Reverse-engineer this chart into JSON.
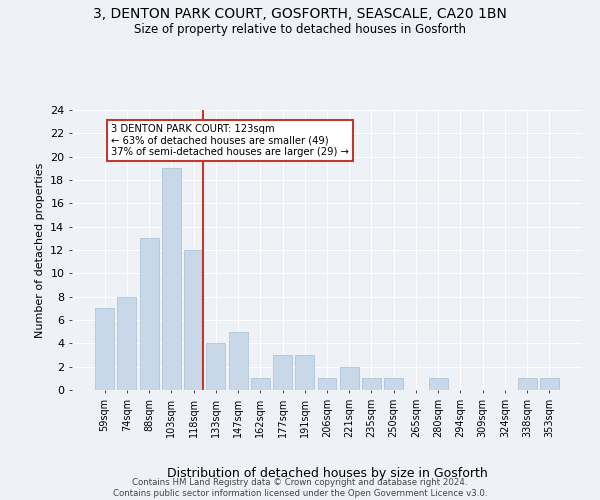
{
  "title1": "3, DENTON PARK COURT, GOSFORTH, SEASCALE, CA20 1BN",
  "title2": "Size of property relative to detached houses in Gosforth",
  "xlabel": "Distribution of detached houses by size in Gosforth",
  "ylabel": "Number of detached properties",
  "categories": [
    "59sqm",
    "74sqm",
    "88sqm",
    "103sqm",
    "118sqm",
    "133sqm",
    "147sqm",
    "162sqm",
    "177sqm",
    "191sqm",
    "206sqm",
    "221sqm",
    "235sqm",
    "250sqm",
    "265sqm",
    "280sqm",
    "294sqm",
    "309sqm",
    "324sqm",
    "338sqm",
    "353sqm"
  ],
  "values": [
    7,
    8,
    13,
    19,
    12,
    4,
    5,
    1,
    3,
    3,
    1,
    2,
    1,
    1,
    0,
    1,
    0,
    0,
    0,
    1,
    1
  ],
  "bar_color": "#c8d8e8",
  "bar_edge_color": "#a8bfd0",
  "vline_color": "#c0392b",
  "vline_pos": 4.42,
  "annotation_text": "3 DENTON PARK COURT: 123sqm\n← 63% of detached houses are smaller (49)\n37% of semi-detached houses are larger (29) →",
  "annotation_box_color": "white",
  "annotation_box_edge": "#c0392b",
  "ylim": [
    0,
    24
  ],
  "yticks": [
    0,
    2,
    4,
    6,
    8,
    10,
    12,
    14,
    16,
    18,
    20,
    22,
    24
  ],
  "footer": "Contains HM Land Registry data © Crown copyright and database right 2024.\nContains public sector information licensed under the Open Government Licence v3.0.",
  "bg_color": "#eef2f7",
  "plot_bg_color": "#eef2f7"
}
